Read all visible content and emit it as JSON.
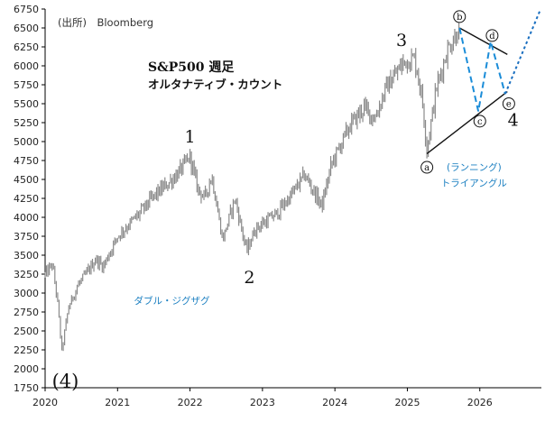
{
  "chart_data": {
    "type": "line",
    "title": "S&P500 週足",
    "subtitle": "オルタナティブ・カウント",
    "source": "(出所)　Bloomberg",
    "xlim": [
      2020.0,
      2026.85
    ],
    "ylim": [
      1750,
      6750
    ],
    "x_ticks": [
      2020,
      2021,
      2022,
      2023,
      2024,
      2025,
      2026
    ],
    "x_tick_labels": [
      "2020",
      "2021",
      "2022",
      "2023",
      "2024",
      "2025",
      "2026"
    ],
    "y_ticks": [
      1750,
      2000,
      2250,
      2500,
      2750,
      3000,
      3250,
      3500,
      3750,
      4000,
      4250,
      4500,
      4750,
      5000,
      5250,
      5500,
      5750,
      6000,
      6250,
      6500,
      6750
    ],
    "y_tick_labels": [
      "1750",
      "2000",
      "2250",
      "2500",
      "2750",
      "3000",
      "3250",
      "3500",
      "3750",
      "4000",
      "4250",
      "4500",
      "4750",
      "5000",
      "5250",
      "5500",
      "5750",
      "6000",
      "6250",
      "6500",
      "6750"
    ],
    "grid": false,
    "series": [
      {
        "style": "weekly-bars",
        "color": "#8a8a8a",
        "anchors": [
          [
            2020.0,
            3240
          ],
          [
            2020.1,
            3380
          ],
          [
            2020.17,
            2900
          ],
          [
            2020.23,
            2230
          ],
          [
            2020.32,
            2800
          ],
          [
            2020.45,
            3100
          ],
          [
            2020.6,
            3300
          ],
          [
            2020.7,
            3450
          ],
          [
            2020.8,
            3350
          ],
          [
            2020.9,
            3550
          ],
          [
            2021.0,
            3750
          ],
          [
            2021.3,
            4050
          ],
          [
            2021.5,
            4280
          ],
          [
            2021.7,
            4450
          ],
          [
            2021.85,
            4600
          ],
          [
            2022.0,
            4800
          ],
          [
            2022.1,
            4400
          ],
          [
            2022.2,
            4250
          ],
          [
            2022.3,
            4550
          ],
          [
            2022.45,
            3700
          ],
          [
            2022.62,
            4250
          ],
          [
            2022.78,
            3550
          ],
          [
            2022.9,
            3850
          ],
          [
            2023.05,
            3950
          ],
          [
            2023.2,
            4050
          ],
          [
            2023.4,
            4300
          ],
          [
            2023.58,
            4560
          ],
          [
            2023.82,
            4150
          ],
          [
            2023.95,
            4700
          ],
          [
            2024.2,
            5200
          ],
          [
            2024.4,
            5450
          ],
          [
            2024.55,
            5300
          ],
          [
            2024.7,
            5700
          ],
          [
            2024.95,
            6050
          ],
          [
            2025.1,
            6100
          ],
          [
            2025.2,
            5600
          ],
          [
            2025.27,
            4900
          ],
          [
            2025.4,
            5700
          ],
          [
            2025.55,
            6200
          ],
          [
            2025.72,
            6500
          ]
        ]
      },
      {
        "name": "trendline-upper",
        "style": "line",
        "color": "#111111",
        "points": [
          [
            2025.72,
            6500
          ],
          [
            2026.38,
            6150
          ]
        ]
      },
      {
        "name": "trendline-lower",
        "style": "line",
        "color": "#111111",
        "points": [
          [
            2025.27,
            4840
          ],
          [
            2026.38,
            5660
          ]
        ]
      },
      {
        "name": "triangle-zigzag",
        "style": "dashed",
        "color": "#1a8cd8",
        "points": [
          [
            2025.72,
            6500
          ],
          [
            2025.98,
            5400
          ],
          [
            2026.15,
            6320
          ],
          [
            2026.35,
            5630
          ]
        ]
      },
      {
        "name": "projection",
        "style": "dotted",
        "color": "#1a6fc0",
        "points": [
          [
            2026.35,
            5630
          ],
          [
            2026.84,
            6750
          ]
        ]
      }
    ],
    "annotations": {
      "wave_labels": [
        {
          "text": "(4)",
          "x": 2020.28,
          "y": 1750,
          "style": "wave4"
        },
        {
          "text": "1",
          "x": 2022.0,
          "y": 4990,
          "style": "wave"
        },
        {
          "text": "2",
          "x": 2022.82,
          "y": 3130,
          "style": "wave"
        },
        {
          "text": "3",
          "x": 2024.92,
          "y": 6260,
          "style": "wave"
        },
        {
          "text": "4",
          "x": 2026.46,
          "y": 5210,
          "style": "wave"
        }
      ],
      "circle_labels": [
        {
          "text": "a",
          "x": 2025.27,
          "y": 4660
        },
        {
          "text": "b",
          "x": 2025.72,
          "y": 6650
        },
        {
          "text": "c",
          "x": 2026.0,
          "y": 5270
        },
        {
          "text": "d",
          "x": 2026.17,
          "y": 6400
        },
        {
          "text": "e",
          "x": 2026.4,
          "y": 5500
        }
      ],
      "blue_notes": [
        {
          "text": "(ランニング)",
          "x": 2025.92,
          "y": 4620
        },
        {
          "text": "トライアングル",
          "x": 2025.92,
          "y": 4410
        },
        {
          "text": "ダブル・ジグザグ",
          "x": 2021.75,
          "y": 2860
        }
      ]
    }
  }
}
